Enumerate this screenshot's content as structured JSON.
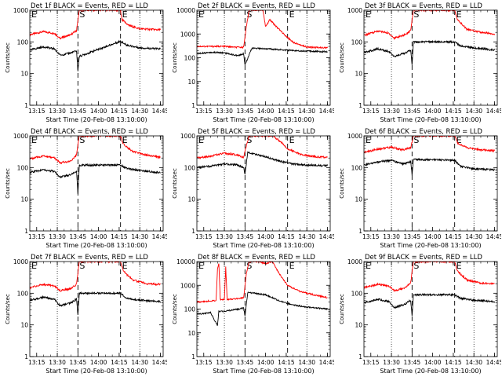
{
  "figure": {
    "background": "#ffffff",
    "axis_color": "#000000"
  },
  "chart_data": [
    {
      "type": "line",
      "title": "Det 1f BLACK = Events, RED = LLD",
      "xlabel": "Start Time (20-Feb-08 13:10:00)",
      "ylabel": "Counts/sec",
      "x_ticks": [
        "13:15",
        "13:30",
        "13:45",
        "14:00",
        "14:15",
        "14:30",
        "14:45"
      ],
      "y_ticks": [
        "1",
        "10",
        "100",
        "1000"
      ],
      "ylog": true,
      "ylim": [
        1,
        1000
      ],
      "xlim_minutes_after_start": [
        0,
        97
      ],
      "markers": [
        {
          "label": "E",
          "time": "13:10"
        },
        {
          "label": "S",
          "time": "13:45"
        },
        {
          "label": "E",
          "time": "14:16"
        }
      ],
      "series": [
        {
          "name": "RED = LLD",
          "color": "#ff0000",
          "x": [
            "13:10",
            "13:20",
            "13:28",
            "13:32",
            "13:40",
            "13:44",
            "13:46",
            "13:47",
            "14:16",
            "14:17",
            "14:22",
            "14:30",
            "14:45"
          ],
          "values": [
            170,
            210,
            185,
            130,
            170,
            230,
            1000,
            1000,
            1000,
            500,
            330,
            260,
            240
          ]
        },
        {
          "name": "BLACK = Events",
          "color": "#000000",
          "x": [
            "13:10",
            "13:20",
            "13:28",
            "13:32",
            "13:40",
            "13:44",
            "13:45",
            "13:46",
            "14:16",
            "14:20",
            "14:30",
            "14:45"
          ],
          "values": [
            55,
            70,
            60,
            38,
            45,
            52,
            12,
            35,
            105,
            80,
            65,
            60
          ]
        }
      ]
    },
    {
      "type": "line",
      "title": "Det 2f BLACK = Events, RED = LLD",
      "xlabel": "Start Time (20-Feb-08 13:10:00)",
      "ylabel": "Counts/sec",
      "x_ticks": [
        "13:15",
        "13:30",
        "13:45",
        "14:00",
        "14:15",
        "14:30",
        "14:45"
      ],
      "y_ticks": [
        "1",
        "10",
        "100",
        "1000",
        "10000"
      ],
      "ylog": true,
      "ylim": [
        1,
        10000
      ],
      "xlim_minutes_after_start": [
        0,
        97
      ],
      "markers": [
        {
          "label": "E",
          "time": "13:10"
        },
        {
          "label": "S",
          "time": "13:45"
        },
        {
          "label": "E",
          "time": "14:16"
        }
      ],
      "series": [
        {
          "name": "RED = LLD",
          "color": "#ff0000",
          "x": [
            "13:10",
            "13:20",
            "13:30",
            "13:40",
            "13:44",
            "13:46",
            "13:48",
            "13:52",
            "13:55",
            "13:58",
            "14:00",
            "14:03",
            "14:08",
            "14:14",
            "14:20",
            "14:30",
            "14:45"
          ],
          "values": [
            300,
            300,
            300,
            270,
            280,
            2000,
            10000,
            10000,
            10000,
            10000,
            2000,
            4000,
            2000,
            900,
            450,
            280,
            260
          ]
        },
        {
          "name": "BLACK = Events",
          "color": "#000000",
          "x": [
            "13:10",
            "13:20",
            "13:30",
            "13:40",
            "13:44",
            "13:45",
            "13:50",
            "14:00",
            "14:10",
            "14:20",
            "14:30",
            "14:45"
          ],
          "values": [
            150,
            170,
            160,
            120,
            150,
            50,
            250,
            240,
            220,
            200,
            190,
            180
          ]
        }
      ]
    },
    {
      "type": "line",
      "title": "Det 3f BLACK = Events, RED = LLD",
      "xlabel": "Start Time (20-Feb-08 13:10:00)",
      "ylabel": "Counts/sec",
      "x_ticks": [
        "13:15",
        "13:30",
        "13:45",
        "14:00",
        "14:15",
        "14:30",
        "14:45"
      ],
      "y_ticks": [
        "1",
        "10",
        "100",
        "1000"
      ],
      "ylog": true,
      "ylim": [
        1,
        1000
      ],
      "xlim_minutes_after_start": [
        0,
        97
      ],
      "markers": [
        {
          "label": "E",
          "time": "13:10"
        },
        {
          "label": "S",
          "time": "13:45"
        },
        {
          "label": "E",
          "time": "14:16"
        }
      ],
      "series": [
        {
          "name": "RED = LLD",
          "color": "#ff0000",
          "x": [
            "13:10",
            "13:20",
            "13:28",
            "13:32",
            "13:40",
            "13:44",
            "13:46",
            "14:16",
            "14:18",
            "14:25",
            "14:35",
            "14:45"
          ],
          "values": [
            160,
            220,
            190,
            130,
            170,
            230,
            1000,
            1000,
            500,
            250,
            200,
            180
          ]
        },
        {
          "name": "BLACK = Events",
          "color": "#000000",
          "x": [
            "13:10",
            "13:20",
            "13:28",
            "13:32",
            "13:40",
            "13:44",
            "13:45",
            "13:46",
            "14:16",
            "14:20",
            "14:30",
            "14:45"
          ],
          "values": [
            45,
            60,
            50,
            35,
            45,
            55,
            20,
            100,
            100,
            75,
            65,
            55
          ]
        }
      ]
    },
    {
      "type": "line",
      "title": "Det 4f BLACK = Events, RED = LLD",
      "xlabel": "Start Time (20-Feb-08 13:10:00)",
      "ylabel": "Counts/sec",
      "x_ticks": [
        "13:15",
        "13:30",
        "13:45",
        "14:00",
        "14:15",
        "14:30",
        "14:45"
      ],
      "y_ticks": [
        "1",
        "10",
        "100",
        "1000"
      ],
      "ylog": true,
      "ylim": [
        1,
        1000
      ],
      "xlim_minutes_after_start": [
        0,
        97
      ],
      "markers": [
        {
          "label": "E",
          "time": "13:10"
        },
        {
          "label": "S",
          "time": "13:45"
        },
        {
          "label": "E",
          "time": "14:16"
        }
      ],
      "series": [
        {
          "name": "RED = LLD",
          "color": "#ff0000",
          "x": [
            "13:10",
            "13:20",
            "13:28",
            "13:32",
            "13:40",
            "13:44",
            "13:46",
            "14:16",
            "14:18",
            "14:25",
            "14:35",
            "14:45"
          ],
          "values": [
            190,
            230,
            200,
            140,
            160,
            250,
            1000,
            1000,
            550,
            320,
            250,
            210
          ]
        },
        {
          "name": "BLACK = Events",
          "color": "#000000",
          "x": [
            "13:10",
            "13:20",
            "13:28",
            "13:32",
            "13:40",
            "13:44",
            "13:45",
            "13:46",
            "14:16",
            "14:20",
            "14:30",
            "14:45"
          ],
          "values": [
            70,
            85,
            75,
            50,
            60,
            75,
            15,
            120,
            120,
            95,
            80,
            70
          ]
        }
      ]
    },
    {
      "type": "line",
      "title": "Det 5f BLACK = Events, RED = LLD",
      "xlabel": "Start Time (20-Feb-08 13:10:00)",
      "ylabel": "Counts/sec",
      "x_ticks": [
        "13:15",
        "13:30",
        "13:45",
        "14:00",
        "14:15",
        "14:30",
        "14:45"
      ],
      "y_ticks": [
        "1",
        "10",
        "100",
        "1000"
      ],
      "ylog": true,
      "ylim": [
        1,
        1000
      ],
      "xlim_minutes_after_start": [
        0,
        97
      ],
      "markers": [
        {
          "label": "E",
          "time": "13:10"
        },
        {
          "label": "S",
          "time": "13:45"
        },
        {
          "label": "E",
          "time": "14:16"
        }
      ],
      "series": [
        {
          "name": "RED = LLD",
          "color": "#ff0000",
          "x": [
            "13:10",
            "13:20",
            "13:30",
            "13:40",
            "13:44",
            "13:46",
            "13:48",
            "14:00",
            "14:05",
            "14:10",
            "14:16",
            "14:25",
            "14:35",
            "14:45"
          ],
          "values": [
            200,
            230,
            280,
            250,
            210,
            500,
            1000,
            1000,
            1000,
            700,
            400,
            260,
            220,
            210
          ]
        },
        {
          "name": "BLACK = Events",
          "color": "#000000",
          "x": [
            "13:10",
            "13:20",
            "13:30",
            "13:40",
            "13:44",
            "13:45",
            "13:47",
            "14:00",
            "14:10",
            "14:20",
            "14:30",
            "14:45"
          ],
          "values": [
            100,
            110,
            130,
            120,
            100,
            60,
            300,
            220,
            160,
            130,
            120,
            115
          ]
        }
      ]
    },
    {
      "type": "line",
      "title": "Det 6f BLACK = Events, RED = LLD",
      "xlabel": "Start Time (20-Feb-08 13:10:00)",
      "ylabel": "Counts/sec",
      "x_ticks": [
        "13:15",
        "13:30",
        "13:45",
        "14:00",
        "14:15",
        "14:30",
        "14:45"
      ],
      "y_ticks": [
        "1",
        "10",
        "100",
        "1000"
      ],
      "ylog": true,
      "ylim": [
        1,
        1000
      ],
      "xlim_minutes_after_start": [
        0,
        97
      ],
      "markers": [
        {
          "label": "E",
          "time": "13:10"
        },
        {
          "label": "S",
          "time": "13:45"
        },
        {
          "label": "E",
          "time": "14:16"
        }
      ],
      "series": [
        {
          "name": "RED = LLD",
          "color": "#ff0000",
          "x": [
            "13:10",
            "13:20",
            "13:30",
            "13:38",
            "13:44",
            "13:46",
            "14:16",
            "14:18",
            "14:25",
            "14:35",
            "14:45"
          ],
          "values": [
            300,
            380,
            440,
            360,
            420,
            1000,
            1000,
            600,
            420,
            360,
            340
          ]
        },
        {
          "name": "BLACK = Events",
          "color": "#000000",
          "x": [
            "13:10",
            "13:20",
            "13:30",
            "13:38",
            "13:44",
            "13:45",
            "13:46",
            "14:16",
            "14:20",
            "14:30",
            "14:45"
          ],
          "values": [
            120,
            150,
            170,
            130,
            150,
            60,
            180,
            170,
            110,
            90,
            85
          ]
        }
      ]
    },
    {
      "type": "line",
      "title": "Det 7f BLACK = Events, RED = LLD",
      "xlabel": "Start Time (20-Feb-08 13:10:00)",
      "ylabel": "Counts/sec",
      "x_ticks": [
        "13:15",
        "13:30",
        "13:45",
        "14:00",
        "14:15",
        "14:30",
        "14:45"
      ],
      "y_ticks": [
        "1",
        "10",
        "100",
        "1000"
      ],
      "ylog": true,
      "ylim": [
        1,
        1000
      ],
      "xlim_minutes_after_start": [
        0,
        97
      ],
      "markers": [
        {
          "label": "E",
          "time": "13:10"
        },
        {
          "label": "S",
          "time": "13:45"
        },
        {
          "label": "E",
          "time": "14:16"
        }
      ],
      "series": [
        {
          "name": "RED = LLD",
          "color": "#ff0000",
          "x": [
            "13:10",
            "13:20",
            "13:28",
            "13:32",
            "13:40",
            "13:44",
            "13:46",
            "14:16",
            "14:18",
            "14:25",
            "14:35",
            "14:45"
          ],
          "values": [
            150,
            190,
            170,
            120,
            140,
            190,
            1000,
            1000,
            500,
            260,
            200,
            190
          ]
        },
        {
          "name": "BLACK = Events",
          "color": "#000000",
          "x": [
            "13:10",
            "13:20",
            "13:28",
            "13:32",
            "13:40",
            "13:44",
            "13:45",
            "13:46",
            "14:16",
            "14:20",
            "14:30",
            "14:45"
          ],
          "values": [
            60,
            75,
            65,
            40,
            50,
            65,
            20,
            100,
            100,
            70,
            60,
            55
          ]
        }
      ]
    },
    {
      "type": "line",
      "title": "Det 8f BLACK = Events, RED = LLD",
      "xlabel": "Start Time (20-Feb-08 13:10:00)",
      "ylabel": "Counts/sec",
      "x_ticks": [
        "13:15",
        "13:30",
        "13:45",
        "14:00",
        "14:15",
        "14:30",
        "14:45"
      ],
      "y_ticks": [
        "1",
        "10",
        "100",
        "1000",
        "10000"
      ],
      "ylog": true,
      "ylim": [
        1,
        10000
      ],
      "xlim_minutes_after_start": [
        0,
        97
      ],
      "markers": [
        {
          "label": "E",
          "time": "13:10"
        },
        {
          "label": "S",
          "time": "13:45"
        },
        {
          "label": "E",
          "time": "14:16"
        }
      ],
      "series": [
        {
          "name": "RED = LLD",
          "color": "#ff0000",
          "x": [
            "13:10",
            "13:20",
            "13:24",
            "13:25",
            "13:26",
            "13:27",
            "13:30",
            "13:31",
            "13:32",
            "13:40",
            "13:44",
            "13:46",
            "13:48",
            "13:55",
            "14:00",
            "14:05",
            "14:10",
            "14:16",
            "14:25",
            "14:35",
            "14:45"
          ],
          "values": [
            200,
            220,
            230,
            5000,
            8000,
            250,
            260,
            6000,
            250,
            280,
            300,
            3000,
            10000,
            10000,
            8000,
            10000,
            3000,
            1000,
            550,
            400,
            300
          ]
        },
        {
          "name": "BLACK = Events",
          "color": "#000000",
          "x": [
            "13:10",
            "13:20",
            "13:25",
            "13:26",
            "13:30",
            "13:40",
            "13:44",
            "13:45",
            "13:47",
            "14:00",
            "14:10",
            "14:20",
            "14:30",
            "14:45"
          ],
          "values": [
            60,
            70,
            20,
            80,
            80,
            100,
            110,
            50,
            500,
            400,
            220,
            150,
            120,
            100
          ]
        }
      ]
    },
    {
      "type": "line",
      "title": "Det 9f BLACK = Events, RED = LLD",
      "xlabel": "Start Time (20-Feb-08 13:10:00)",
      "ylabel": "Counts/sec",
      "x_ticks": [
        "13:15",
        "13:30",
        "13:45",
        "14:00",
        "14:15",
        "14:30",
        "14:45"
      ],
      "y_ticks": [
        "1",
        "10",
        "100",
        "1000"
      ],
      "ylog": true,
      "ylim": [
        1,
        1000
      ],
      "xlim_minutes_after_start": [
        0,
        97
      ],
      "markers": [
        {
          "label": "E",
          "time": "13:10"
        },
        {
          "label": "S",
          "time": "13:45"
        },
        {
          "label": "E",
          "time": "14:16"
        }
      ],
      "series": [
        {
          "name": "RED = LLD",
          "color": "#ff0000",
          "x": [
            "13:10",
            "13:20",
            "13:28",
            "13:32",
            "13:40",
            "13:44",
            "13:46",
            "14:16",
            "14:18",
            "14:25",
            "14:35",
            "14:45"
          ],
          "values": [
            150,
            190,
            170,
            120,
            150,
            220,
            1000,
            1000,
            500,
            260,
            210,
            200
          ]
        },
        {
          "name": "BLACK = Events",
          "color": "#000000",
          "x": [
            "13:10",
            "13:20",
            "13:28",
            "13:32",
            "13:40",
            "13:44",
            "13:45",
            "13:46",
            "14:16",
            "14:20",
            "14:30",
            "14:45"
          ],
          "values": [
            50,
            65,
            55,
            35,
            45,
            60,
            20,
            90,
            90,
            70,
            60,
            55
          ]
        }
      ]
    }
  ]
}
